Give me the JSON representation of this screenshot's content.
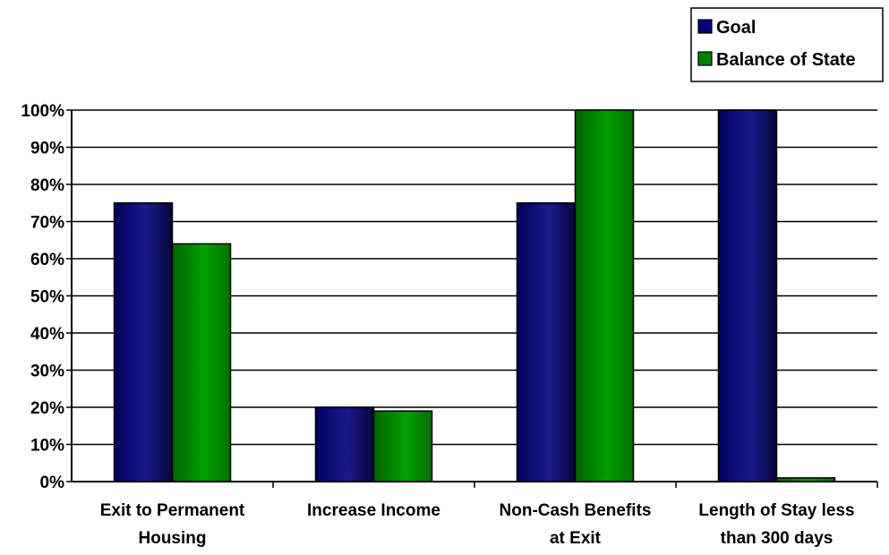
{
  "chart_data": {
    "type": "bar",
    "title": "",
    "xlabel": "",
    "ylabel": "",
    "categories": [
      [
        "Exit to Permanent",
        "Housing"
      ],
      [
        "Increase Income"
      ],
      [
        "Non-Cash Benefits",
        "at Exit"
      ],
      [
        "Length of Stay less",
        "than 300 days"
      ]
    ],
    "series": [
      {
        "name": "Goal",
        "color": "#000080",
        "values": [
          0.75,
          0.2,
          0.75,
          1.0
        ]
      },
      {
        "name": "Balance of State",
        "color": "#008000",
        "values": [
          0.64,
          0.19,
          1.0,
          0.01
        ]
      }
    ],
    "ylim": [
      0,
      1
    ],
    "yticks": [
      "0%",
      "10%",
      "20%",
      "30%",
      "40%",
      "50%",
      "60%",
      "70%",
      "80%",
      "90%",
      "100%"
    ],
    "grid": true,
    "legend": "top-right"
  }
}
